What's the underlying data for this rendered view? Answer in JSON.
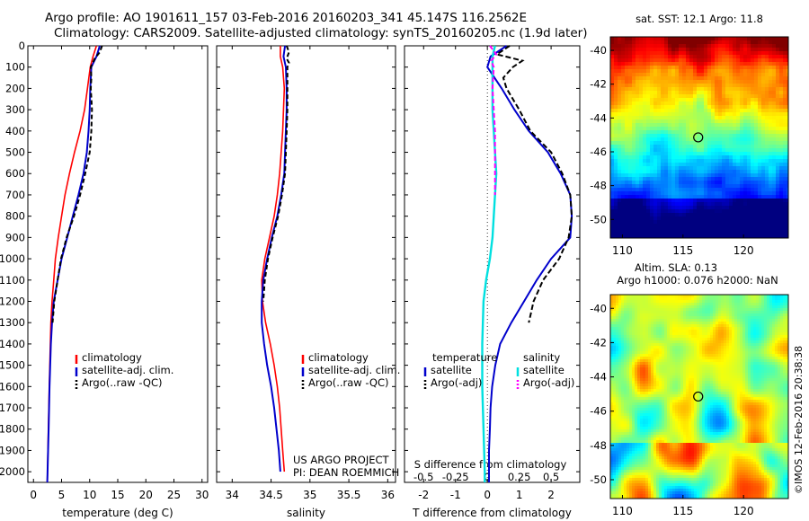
{
  "title_line1": "Argo profile: AO 1901611_157 03-Feb-2016 20160203_341 45.147S 116.2562E",
  "title_line2": "Climatology: CARS2009. Satellite-adjusted climatology: synTS_20160205.nc (1.9d later)",
  "colors": {
    "climatology": "#ff0000",
    "satellite": "#0000cc",
    "argo": "#000000",
    "sal_satellite": "#00e0e0",
    "sal_argo": "#ff00ff"
  },
  "project_text": [
    "US ARGO PROJECT",
    "PI: DEAN ROEMMICH"
  ],
  "stamp_text": "©IMOS 12-Feb-2016 20:38:38",
  "chart_data": [
    {
      "type": "line",
      "xlabel": "temperature (deg C)",
      "ylim": [
        0,
        2050
      ],
      "xlim": [
        -1,
        31
      ],
      "xticks": [
        0,
        5,
        10,
        15,
        20,
        25,
        30
      ],
      "yticks": [
        0,
        100,
        200,
        300,
        400,
        500,
        600,
        700,
        800,
        900,
        1000,
        1100,
        1200,
        1300,
        1400,
        1500,
        1600,
        1700,
        1800,
        1900,
        2000
      ],
      "legend": [
        "climatology",
        "satellite-adj. clim.",
        "Argo(..raw -QC)"
      ],
      "series": [
        {
          "name": "climatology",
          "depth": [
            0,
            50,
            100,
            200,
            300,
            400,
            500,
            600,
            700,
            800,
            900,
            1000,
            1100,
            1200,
            1300,
            1400,
            1600,
            1800,
            2000,
            2050
          ],
          "values": [
            11.2,
            10.6,
            10.1,
            9.6,
            9.1,
            8.3,
            7.3,
            6.4,
            5.6,
            5.0,
            4.4,
            3.9,
            3.6,
            3.3,
            3.1,
            3.0,
            2.8,
            2.65,
            2.5,
            2.45
          ]
        },
        {
          "name": "satellite-adj. clim.",
          "depth": [
            0,
            50,
            100,
            200,
            300,
            400,
            500,
            600,
            700,
            800,
            900,
            1000,
            1100,
            1200,
            1300,
            1400,
            1600,
            1800,
            2000,
            2050
          ],
          "values": [
            11.8,
            11.2,
            10.3,
            10.1,
            10.0,
            9.8,
            9.5,
            8.9,
            8.0,
            7.0,
            6.0,
            5.0,
            4.3,
            3.6,
            3.3,
            3.1,
            2.85,
            2.7,
            2.5,
            2.45
          ]
        },
        {
          "name": "Argo(..raw -QC)",
          "depth": [
            0,
            30,
            60,
            100,
            150,
            200,
            300,
            400,
            500,
            600,
            700,
            800,
            900,
            1000,
            1100,
            1200,
            1300
          ],
          "values": [
            12.2,
            11.8,
            10.9,
            10.2,
            10.3,
            10.2,
            10.4,
            10.3,
            10.0,
            9.2,
            8.3,
            7.2,
            5.9,
            4.9,
            4.3,
            3.7,
            3.4
          ]
        }
      ]
    },
    {
      "type": "line",
      "xlabel": "salinity",
      "ylim": [
        0,
        2050
      ],
      "xlim": [
        33.8,
        36.1
      ],
      "xticks": [
        34,
        34.5,
        35,
        35.5,
        36
      ],
      "legend": [
        "climatology",
        "satellite-adj. clim.",
        "Argo(..raw -QC)"
      ],
      "series": [
        {
          "name": "climatology",
          "depth": [
            0,
            50,
            100,
            200,
            300,
            400,
            500,
            600,
            700,
            800,
            900,
            1000,
            1100,
            1200,
            1300,
            1400,
            1500,
            1600,
            1700,
            1800,
            1900,
            2000
          ],
          "values": [
            34.62,
            34.62,
            34.65,
            34.67,
            34.66,
            34.65,
            34.63,
            34.61,
            34.58,
            34.54,
            34.48,
            34.42,
            34.38,
            34.39,
            34.43,
            34.49,
            34.54,
            34.58,
            34.61,
            34.63,
            34.65,
            34.67
          ]
        },
        {
          "name": "satellite-adj. clim.",
          "depth": [
            0,
            50,
            100,
            200,
            300,
            400,
            500,
            600,
            700,
            800,
            900,
            1000,
            1100,
            1200,
            1300,
            1400,
            1500,
            1600,
            1700,
            1800,
            1900,
            2000
          ],
          "values": [
            34.68,
            34.66,
            34.69,
            34.7,
            34.7,
            34.69,
            34.68,
            34.67,
            34.63,
            34.58,
            34.51,
            34.45,
            34.4,
            34.38,
            34.38,
            34.41,
            34.45,
            34.5,
            34.54,
            34.57,
            34.6,
            34.62
          ]
        },
        {
          "name": "Argo(..raw -QC)",
          "depth": [
            0,
            30,
            60,
            80,
            100,
            200,
            300,
            400,
            500,
            600,
            700,
            800,
            900,
            1000,
            1100,
            1200
          ],
          "values": [
            34.7,
            34.73,
            34.7,
            34.73,
            34.71,
            34.71,
            34.71,
            34.7,
            34.69,
            34.68,
            34.64,
            34.59,
            34.52,
            34.46,
            34.42,
            34.4
          ]
        }
      ]
    },
    {
      "type": "line",
      "xlabel": "T difference from climatology",
      "xlabel_top": "S difference from climatology",
      "ylim": [
        0,
        2050
      ],
      "xlim": [
        -2.6,
        2.9
      ],
      "xticks": [
        -2,
        -1,
        0,
        1,
        2
      ],
      "sticks": [
        "-0.5",
        "-0.25",
        "0",
        "0.25",
        "0.5"
      ],
      "legend": [
        "temperature",
        "satellite",
        "Argo(-adj)",
        "salinity",
        "satellite",
        "Argo(-adj)"
      ],
      "series": [
        {
          "name": "temperature satellite",
          "depth": [
            0,
            50,
            100,
            200,
            300,
            400,
            500,
            600,
            700,
            800,
            900,
            1000,
            1100,
            1200,
            1300,
            1400,
            1500,
            1600,
            1700,
            1800,
            1900,
            2000,
            2050
          ],
          "values": [
            0.6,
            0.1,
            0.0,
            0.45,
            0.85,
            1.3,
            1.9,
            2.3,
            2.6,
            2.65,
            2.6,
            2.0,
            1.55,
            1.15,
            0.75,
            0.4,
            0.25,
            0.15,
            0.1,
            0.08,
            0.05,
            0.05,
            0.05
          ]
        },
        {
          "name": "temperature Argo(-adj)",
          "depth": [
            0,
            40,
            70,
            100,
            150,
            200,
            300,
            400,
            500,
            600,
            700,
            800,
            900,
            1000,
            1100,
            1200,
            1300
          ],
          "values": [
            0.7,
            0.3,
            1.1,
            0.8,
            0.5,
            0.6,
            1.0,
            1.35,
            2.0,
            2.35,
            2.6,
            2.65,
            2.55,
            2.25,
            1.75,
            1.45,
            1.3
          ]
        },
        {
          "name": "salinity satellite",
          "depth": [
            0,
            50,
            100,
            200,
            300,
            400,
            500,
            600,
            700,
            800,
            900,
            1000,
            1100,
            1200,
            1400,
            1600,
            1800,
            2000,
            2050
          ],
          "values": [
            0.06,
            0.04,
            0.04,
            0.04,
            0.04,
            0.05,
            0.06,
            0.07,
            0.06,
            0.05,
            0.04,
            0.02,
            -0.01,
            -0.03,
            -0.04,
            -0.04,
            -0.03,
            -0.02,
            -0.02
          ]
        },
        {
          "name": "salinity Argo(-adj)",
          "depth": [
            0,
            40,
            70,
            100,
            200,
            300,
            400,
            500,
            600,
            700
          ],
          "values": [
            0.02,
            0.07,
            0.03,
            0.05,
            0.04,
            0.05,
            0.06,
            0.06,
            0.06,
            0.06
          ]
        }
      ]
    },
    {
      "type": "heatmap",
      "title": "sat. SST: 12.1  Argo: 11.8",
      "xticks": [
        110,
        115,
        120
      ],
      "yticks": [
        -40,
        -42,
        -44,
        -46,
        -48,
        -50
      ],
      "xlim": [
        109,
        123.7
      ],
      "ylim": [
        -51.1,
        -39.2
      ],
      "marker": [
        116.2562,
        -45.147
      ]
    },
    {
      "type": "heatmap",
      "title": "Altim. SLA: 0.13",
      "subtitle": "Argo h1000: 0.076 h2000: NaN",
      "xticks": [
        110,
        115,
        120
      ],
      "yticks": [
        -40,
        -42,
        -44,
        -46,
        -48,
        -50
      ],
      "xlim": [
        109,
        123.7
      ],
      "ylim": [
        -51.1,
        -39.2
      ],
      "marker": [
        116.2562,
        -45.147
      ]
    }
  ]
}
